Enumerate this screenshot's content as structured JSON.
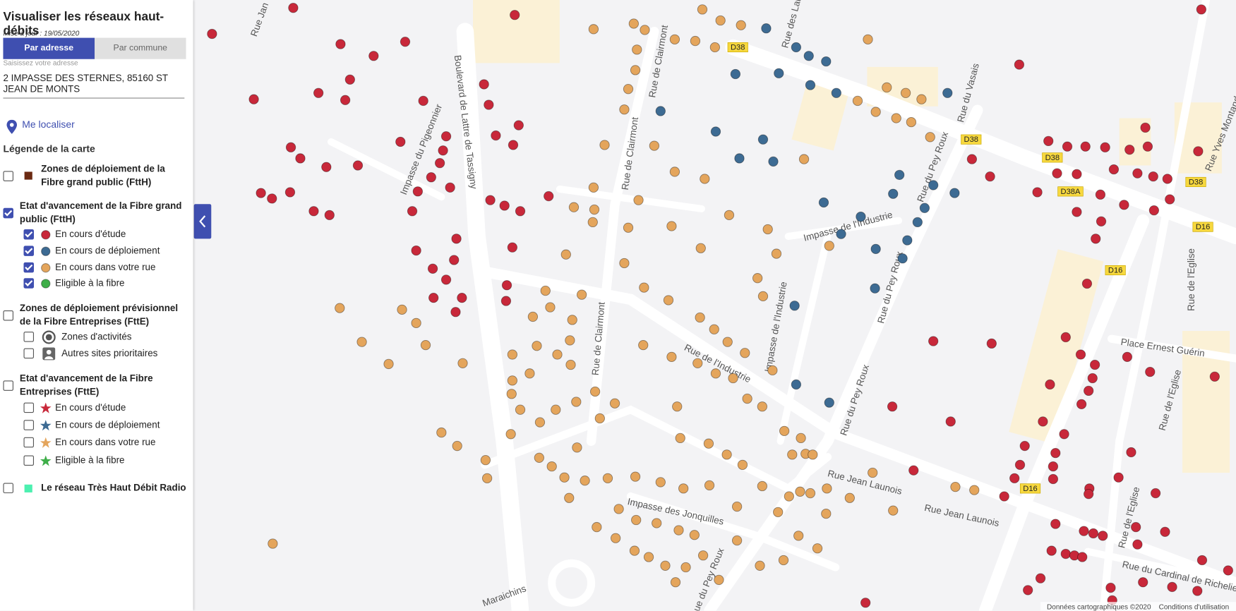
{
  "sidebar": {
    "title": "Visualiser les réseaux haut-débits",
    "updated": "Mise à jour : 19/05/2020",
    "tabs": [
      {
        "label": "Par adresse",
        "active": true
      },
      {
        "label": "Par commune",
        "active": false
      }
    ],
    "address_placeholder": "Saisissez votre adresse",
    "address": "2 IMPASSE DES STERNES, 85160 ST JEAN DE MONTS",
    "locate": "Me localiser",
    "legend_title": "Légende de la carte",
    "legend": [
      {
        "label": "Zones de déploiement de la Fibre grand public (FttH)",
        "checked": false,
        "color": "#6b2a12",
        "items": []
      },
      {
        "label": "Etat d'avancement de la Fibre grand public (FttH)",
        "checked": true,
        "items": [
          {
            "label": "En cours d'étude",
            "checked": true,
            "color": "#c8283a"
          },
          {
            "label": "En cours de déploiement",
            "checked": true,
            "color": "#3d6b93"
          },
          {
            "label": "En cours dans votre rue",
            "checked": true,
            "color": "#e4a55c"
          },
          {
            "label": "Eligible à la fibre",
            "checked": true,
            "color": "#3fae49"
          }
        ]
      },
      {
        "label": "Zones de déploiement prévisionnel de la Fibre Entreprises (FttE)",
        "checked": false,
        "items": [
          {
            "label": "Zones d'activités",
            "checked": false
          },
          {
            "label": "Autres sites prioritaires",
            "checked": false
          }
        ]
      },
      {
        "label": "Etat d'avancement de la Fibre Entreprises (FttE)",
        "checked": false,
        "items": [
          {
            "label": "En cours d'étude",
            "checked": false,
            "color": "#c8283a"
          },
          {
            "label": "En cours de déploiement",
            "checked": false,
            "color": "#3d6b93"
          },
          {
            "label": "En cours dans votre rue",
            "checked": false,
            "color": "#e4a55c"
          },
          {
            "label": "Eligible à la fibre",
            "checked": false,
            "color": "#3fae49"
          }
        ]
      },
      {
        "label": "Le réseau Très Haut Débit Radio",
        "checked": false,
        "color": "#4cf0b0",
        "items": []
      }
    ]
  },
  "map": {
    "streets": [
      "Boulevard de Lattre de Tassigny",
      "Rue Jan",
      "Impasse du Pigeonnier",
      "Rue de Clairmont",
      "Rue de Clairmont",
      "Rue de Clairmont",
      "Rue des Lau",
      "Rue du Vasais",
      "Rue du Pey Roux",
      "Rue du Pey Roux",
      "Rue du Pey Roux",
      "Rue du Pey Roux",
      "Impasse de l'Industrie",
      "Impasse de l'Industrie",
      "Rue de l'Industrie",
      "Rue Jean Launois",
      "Rue Jean Launois",
      "Impasse des Jonquilles",
      "Place Ernest Guérin",
      "Rue de l'Eglise",
      "Rue de l'Eglise",
      "Rue de l'Eglise",
      "Rue Yves Montand",
      "Rue du Cardinal de Richelieu",
      "Maraichins"
    ],
    "road_badges": [
      "D38",
      "D38",
      "D38",
      "D38",
      "D38A",
      "D16",
      "D16",
      "D16"
    ],
    "attribution": [
      "Données cartographiques ©2020",
      "Conditions d'utilisation"
    ]
  }
}
